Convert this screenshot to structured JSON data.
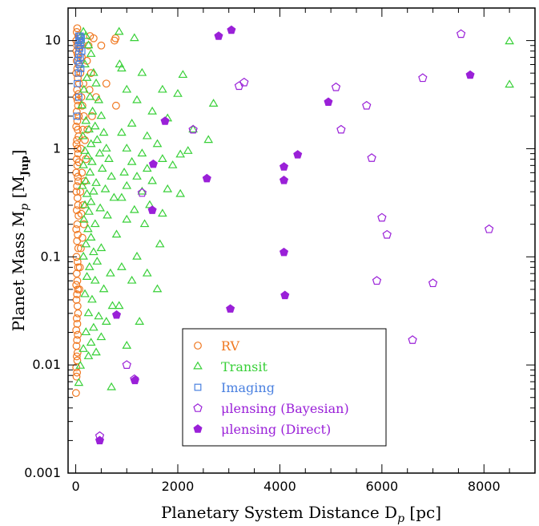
{
  "chart_data": {
    "type": "scatter",
    "xlabel": "Planetary System Distance D",
    "xlabel_sub": "p",
    "xlabel_unit": "[pc]",
    "ylabel": "Planet Mass M",
    "ylabel_sub": "p",
    "ylabel_unit_open": "[M",
    "ylabel_unit_sub": "Jup",
    "ylabel_unit_close": "]",
    "xlim": [
      -150,
      9000
    ],
    "ylim": [
      0.001,
      20
    ],
    "yscale": "log",
    "x_ticks": [
      0,
      2000,
      4000,
      6000,
      8000
    ],
    "x_tick_labels": [
      "0",
      "2000",
      "4000",
      "6000",
      "8000"
    ],
    "y_ticks": [
      0.001,
      0.01,
      0.1,
      1,
      10
    ],
    "y_tick_labels": [
      "0.001",
      "0.01",
      "0.1",
      "1",
      "10"
    ],
    "legend_position": "bottom-center",
    "series": [
      {
        "name": "RV",
        "marker": "circle-open",
        "color": "#f07820",
        "points": [
          [
            30,
            13
          ],
          [
            20,
            12
          ],
          [
            50,
            11
          ],
          [
            10,
            10
          ],
          [
            40,
            9.5
          ],
          [
            25,
            9
          ],
          [
            60,
            8.5
          ],
          [
            15,
            8
          ],
          [
            35,
            7.5
          ],
          [
            45,
            7
          ],
          [
            20,
            6.5
          ],
          [
            55,
            6
          ],
          [
            30,
            5.5
          ],
          [
            10,
            5
          ],
          [
            40,
            4.5
          ],
          [
            65,
            4
          ],
          [
            25,
            3.5
          ],
          [
            50,
            3.2
          ],
          [
            15,
            3
          ],
          [
            35,
            2.8
          ],
          [
            45,
            2.5
          ],
          [
            20,
            2.2
          ],
          [
            60,
            2
          ],
          [
            30,
            1.8
          ],
          [
            10,
            1.6
          ],
          [
            40,
            1.5
          ],
          [
            55,
            1.3
          ],
          [
            25,
            1.2
          ],
          [
            15,
            1.1
          ],
          [
            35,
            1
          ],
          [
            45,
            0.9
          ],
          [
            20,
            0.8
          ],
          [
            60,
            0.75
          ],
          [
            30,
            0.7
          ],
          [
            10,
            0.6
          ],
          [
            40,
            0.55
          ],
          [
            50,
            0.5
          ],
          [
            25,
            0.45
          ],
          [
            15,
            0.4
          ],
          [
            35,
            0.35
          ],
          [
            45,
            0.3
          ],
          [
            20,
            0.27
          ],
          [
            55,
            0.24
          ],
          [
            30,
            0.2
          ],
          [
            10,
            0.18
          ],
          [
            40,
            0.16
          ],
          [
            25,
            0.14
          ],
          [
            50,
            0.12
          ],
          [
            15,
            0.1
          ],
          [
            35,
            0.09
          ],
          [
            45,
            0.08
          ],
          [
            20,
            0.07
          ],
          [
            30,
            0.06
          ],
          [
            10,
            0.055
          ],
          [
            40,
            0.05
          ],
          [
            25,
            0.045
          ],
          [
            15,
            0.04
          ],
          [
            35,
            0.035
          ],
          [
            45,
            0.03
          ],
          [
            20,
            0.027
          ],
          [
            30,
            0.024
          ],
          [
            10,
            0.021
          ],
          [
            40,
            0.019
          ],
          [
            25,
            0.017
          ],
          [
            15,
            0.015
          ],
          [
            35,
            0.013
          ],
          [
            20,
            0.012
          ],
          [
            30,
            0.011
          ],
          [
            10,
            0.0095
          ],
          [
            25,
            0.0085
          ],
          [
            15,
            0.0078
          ],
          [
            5,
            0.0055
          ],
          [
            80,
            11
          ],
          [
            100,
            9
          ],
          [
            120,
            7
          ],
          [
            90,
            5
          ],
          [
            150,
            4
          ],
          [
            110,
            3
          ],
          [
            130,
            2.5
          ],
          [
            160,
            2
          ],
          [
            140,
            1.5
          ],
          [
            180,
            1.2
          ],
          [
            100,
            1
          ],
          [
            200,
            0.8
          ],
          [
            120,
            0.6
          ],
          [
            170,
            0.5
          ],
          [
            90,
            0.4
          ],
          [
            140,
            0.3
          ],
          [
            110,
            0.25
          ],
          [
            160,
            0.2
          ],
          [
            130,
            0.15
          ],
          [
            100,
            0.12
          ],
          [
            80,
            0.08
          ],
          [
            70,
            0.05
          ],
          [
            280,
            11
          ],
          [
            250,
            9
          ],
          [
            220,
            6.5
          ],
          [
            300,
            5
          ],
          [
            270,
            3.5
          ],
          [
            350,
            10.5
          ],
          [
            780,
            10.5
          ],
          [
            760,
            10
          ],
          [
            500,
            9
          ],
          [
            400,
            3
          ],
          [
            790,
            2.5
          ],
          [
            600,
            4
          ],
          [
            230,
            1.5
          ],
          [
            320,
            2
          ]
        ]
      },
      {
        "name": "Transit",
        "marker": "triangle-open",
        "color": "#38d038",
        "points": [
          [
            150,
            12
          ],
          [
            200,
            11
          ],
          [
            100,
            10
          ],
          [
            250,
            9
          ],
          [
            300,
            7.5
          ],
          [
            180,
            6
          ],
          [
            350,
            5
          ],
          [
            220,
            4.5
          ],
          [
            400,
            4
          ],
          [
            160,
            3.5
          ],
          [
            280,
            3
          ],
          [
            450,
            2.8
          ],
          [
            120,
            2.5
          ],
          [
            330,
            2.2
          ],
          [
            500,
            2
          ],
          [
            200,
            1.8
          ],
          [
            380,
            1.6
          ],
          [
            260,
            1.5
          ],
          [
            550,
            1.4
          ],
          [
            140,
            1.3
          ],
          [
            420,
            1.2
          ],
          [
            300,
            1.1
          ],
          [
            600,
            1
          ],
          [
            180,
            0.95
          ],
          [
            470,
            0.9
          ],
          [
            240,
            0.85
          ],
          [
            650,
            0.8
          ],
          [
            320,
            0.75
          ],
          [
            150,
            0.7
          ],
          [
            520,
            0.65
          ],
          [
            280,
            0.6
          ],
          [
            700,
            0.55
          ],
          [
            200,
            0.5
          ],
          [
            400,
            0.48
          ],
          [
            130,
            0.45
          ],
          [
            580,
            0.42
          ],
          [
            350,
            0.4
          ],
          [
            220,
            0.38
          ],
          [
            750,
            0.35
          ],
          [
            300,
            0.32
          ],
          [
            180,
            0.3
          ],
          [
            480,
            0.28
          ],
          [
            260,
            0.26
          ],
          [
            620,
            0.24
          ],
          [
            160,
            0.22
          ],
          [
            380,
            0.2
          ],
          [
            240,
            0.18
          ],
          [
            800,
            0.16
          ],
          [
            300,
            0.15
          ],
          [
            200,
            0.13
          ],
          [
            500,
            0.12
          ],
          [
            350,
            0.11
          ],
          [
            150,
            0.1
          ],
          [
            420,
            0.09
          ],
          [
            270,
            0.08
          ],
          [
            680,
            0.07
          ],
          [
            220,
            0.065
          ],
          [
            380,
            0.06
          ],
          [
            550,
            0.05
          ],
          [
            180,
            0.045
          ],
          [
            320,
            0.04
          ],
          [
            720,
            0.035
          ],
          [
            250,
            0.03
          ],
          [
            450,
            0.028
          ],
          [
            600,
            0.025
          ],
          [
            350,
            0.022
          ],
          [
            200,
            0.02
          ],
          [
            500,
            0.018
          ],
          [
            300,
            0.016
          ],
          [
            150,
            0.014
          ],
          [
            400,
            0.013
          ],
          [
            250,
            0.012
          ],
          [
            90,
            0.0098
          ],
          [
            60,
            0.0068
          ],
          [
            700,
            0.0062
          ],
          [
            850,
            12
          ],
          [
            1150,
            10.5
          ],
          [
            860,
            6
          ],
          [
            900,
            5.5
          ],
          [
            1300,
            5
          ],
          [
            2100,
            4.8
          ],
          [
            1700,
            3.5
          ],
          [
            1000,
            3.5
          ],
          [
            2000,
            3.2
          ],
          [
            1200,
            2.8
          ],
          [
            2700,
            2.6
          ],
          [
            1500,
            2.2
          ],
          [
            1800,
            1.9
          ],
          [
            1100,
            1.7
          ],
          [
            2300,
            1.5
          ],
          [
            900,
            1.4
          ],
          [
            1400,
            1.3
          ],
          [
            2600,
            1.2
          ],
          [
            1600,
            1.1
          ],
          [
            1000,
            1
          ],
          [
            2200,
            0.95
          ],
          [
            1300,
            0.9
          ],
          [
            2050,
            0.88
          ],
          [
            1700,
            0.8
          ],
          [
            1100,
            0.75
          ],
          [
            1900,
            0.7
          ],
          [
            1400,
            0.65
          ],
          [
            950,
            0.6
          ],
          [
            1200,
            0.55
          ],
          [
            1500,
            0.5
          ],
          [
            1000,
            0.45
          ],
          [
            1800,
            0.42
          ],
          [
            1300,
            0.4
          ],
          [
            2050,
            0.38
          ],
          [
            900,
            0.35
          ],
          [
            1450,
            0.3
          ],
          [
            1150,
            0.27
          ],
          [
            1700,
            0.25
          ],
          [
            1000,
            0.22
          ],
          [
            1350,
            0.2
          ],
          [
            1650,
            0.13
          ],
          [
            1200,
            0.1
          ],
          [
            900,
            0.08
          ],
          [
            1400,
            0.07
          ],
          [
            1100,
            0.06
          ],
          [
            1600,
            0.05
          ],
          [
            850,
            0.035
          ],
          [
            1250,
            0.025
          ],
          [
            1000,
            0.015
          ],
          [
            8500,
            9.8
          ],
          [
            8500,
            3.9
          ]
        ]
      },
      {
        "name": "Imaging",
        "marker": "square-open",
        "color": "#4a80e0",
        "points": [
          [
            60,
            11
          ],
          [
            90,
            11
          ],
          [
            110,
            10.5
          ],
          [
            70,
            10
          ],
          [
            100,
            9.5
          ],
          [
            50,
            9
          ],
          [
            80,
            8.5
          ],
          [
            120,
            8
          ],
          [
            60,
            7.5
          ],
          [
            90,
            7
          ],
          [
            40,
            6.5
          ],
          [
            70,
            6
          ],
          [
            100,
            5.5
          ],
          [
            50,
            5
          ],
          [
            30,
            4
          ],
          [
            60,
            3
          ],
          [
            20,
            2
          ]
        ]
      },
      {
        "name": "μlensing (Bayesian)",
        "marker": "pentagon-open",
        "color": "#9a20d8",
        "points": [
          [
            7550,
            11.5
          ],
          [
            3300,
            4.1
          ],
          [
            3200,
            3.8
          ],
          [
            6800,
            4.5
          ],
          [
            5100,
            3.7
          ],
          [
            5700,
            2.5
          ],
          [
            2300,
            1.5
          ],
          [
            5200,
            1.5
          ],
          [
            5800,
            0.82
          ],
          [
            1300,
            0.39
          ],
          [
            6000,
            0.23
          ],
          [
            6100,
            0.16
          ],
          [
            8100,
            0.18
          ],
          [
            5900,
            0.06
          ],
          [
            7000,
            0.057
          ],
          [
            6600,
            0.017
          ],
          [
            1000,
            0.01
          ],
          [
            1150,
            0.0074
          ],
          [
            470,
            0.0022
          ]
        ]
      },
      {
        "name": "μlensing (Direct)",
        "marker": "pentagon-filled",
        "color": "#9a20d8",
        "points": [
          [
            3050,
            12.5
          ],
          [
            2800,
            11
          ],
          [
            7730,
            4.8
          ],
          [
            4950,
            2.7
          ],
          [
            1750,
            1.8
          ],
          [
            4350,
            0.88
          ],
          [
            4080,
            0.68
          ],
          [
            1520,
            0.72
          ],
          [
            2570,
            0.53
          ],
          [
            4080,
            0.51
          ],
          [
            1500,
            0.27
          ],
          [
            4080,
            0.11
          ],
          [
            4100,
            0.044
          ],
          [
            3030,
            0.033
          ],
          [
            800,
            0.029
          ],
          [
            1160,
            0.0072
          ],
          [
            470,
            0.002
          ]
        ]
      }
    ]
  }
}
